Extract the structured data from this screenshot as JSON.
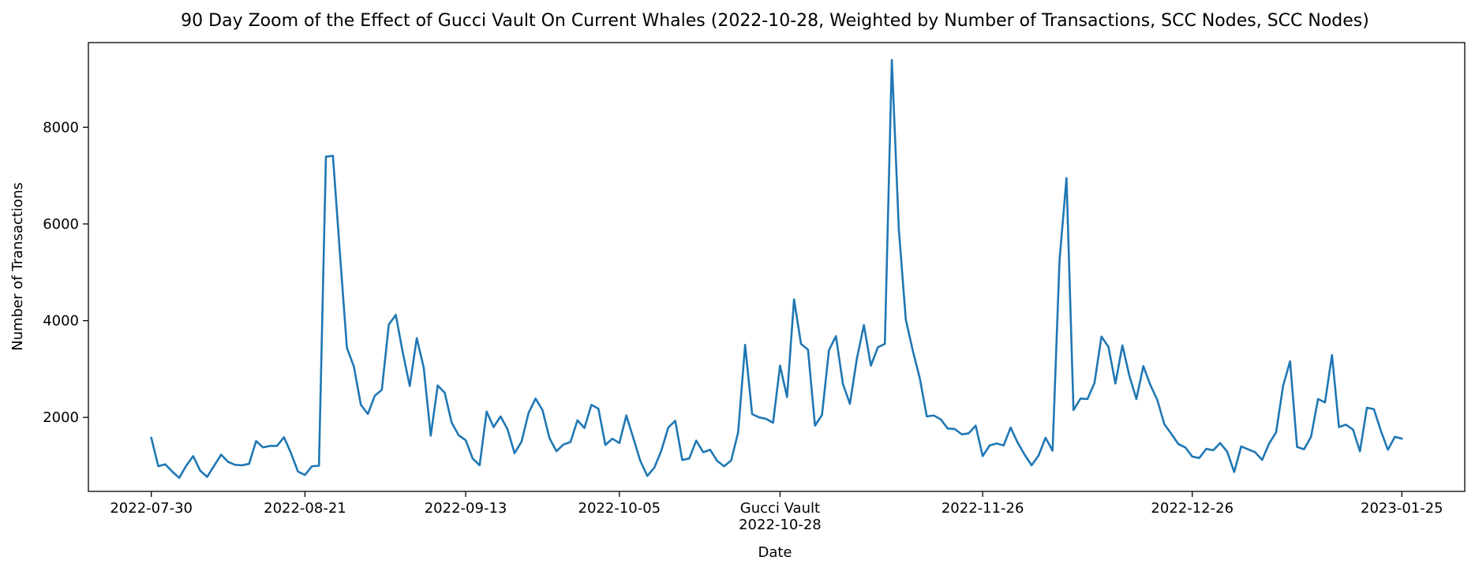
{
  "chart_data": {
    "type": "line",
    "title": "90 Day Zoom of the Effect of Gucci Vault On Current Whales (2022-10-28, Weighted by Number of Transactions, SCC Nodes, SCC Nodes)",
    "xlabel": "Date",
    "ylabel": "Number of Transactions",
    "x_axis": "date",
    "xlim": [
      "2022-07-21",
      "2023-02-03"
    ],
    "ylim": [
      470,
      9750
    ],
    "grid": false,
    "line_color": "#1f77b4",
    "yticks": [
      2000,
      4000,
      6000,
      8000
    ],
    "xticks": [
      {
        "date": "2022-07-30",
        "label": "2022-07-30"
      },
      {
        "date": "2022-08-21",
        "label": "2022-08-21"
      },
      {
        "date": "2022-09-13",
        "label": "2022-09-13"
      },
      {
        "date": "2022-10-05",
        "label": "2022-10-05"
      },
      {
        "date": "2022-10-28",
        "label": "2022-10-28",
        "event_label": "Gucci Vault"
      },
      {
        "date": "2022-11-26",
        "label": "2022-11-26"
      },
      {
        "date": "2022-12-26",
        "label": "2022-12-26"
      },
      {
        "date": "2023-01-25",
        "label": "2023-01-25"
      }
    ],
    "series": [
      {
        "start_date": "2022-07-30",
        "values": [
          1580,
          990,
          1030,
          880,
          750,
          1000,
          1200,
          900,
          770,
          1000,
          1230,
          1080,
          1020,
          1010,
          1040,
          1510,
          1380,
          1410,
          1410,
          1590,
          1260,
          880,
          810,
          990,
          1000,
          7390,
          7410,
          5400,
          3440,
          3050,
          2260,
          2070,
          2450,
          2570,
          3920,
          4120,
          3340,
          2650,
          3640,
          3030,
          1620,
          2660,
          2510,
          1890,
          1630,
          1530,
          1150,
          1010,
          2120,
          1800,
          2020,
          1750,
          1260,
          1500,
          2090,
          2390,
          2150,
          1570,
          1300,
          1440,
          1490,
          1940,
          1780,
          2260,
          2180,
          1430,
          1560,
          1470,
          2040,
          1570,
          1100,
          790,
          960,
          1310,
          1790,
          1930,
          1120,
          1150,
          1520,
          1280,
          1330,
          1100,
          990,
          1110,
          1690,
          3500,
          2070,
          2000,
          1970,
          1890,
          3070,
          2420,
          4440,
          3520,
          3400,
          1830,
          2050,
          3390,
          3680,
          2690,
          2280,
          3220,
          3910,
          3070,
          3450,
          3520,
          9390,
          5890,
          4020,
          3380,
          2810,
          2020,
          2040,
          1960,
          1770,
          1760,
          1650,
          1670,
          1830,
          1200,
          1420,
          1460,
          1420,
          1790,
          1480,
          1230,
          1010,
          1210,
          1580,
          1310,
          5250,
          6950,
          2150,
          2390,
          2380,
          2710,
          3670,
          3460,
          2700,
          3490,
          2860,
          2380,
          3060,
          2670,
          2360,
          1860,
          1660,
          1450,
          1380,
          1190,
          1160,
          1350,
          1320,
          1470,
          1290,
          870,
          1400,
          1340,
          1280,
          1120,
          1460,
          1690,
          2650,
          3160,
          1390,
          1340,
          1600,
          2380,
          2310,
          3290,
          1800,
          1850,
          1750,
          1300,
          2200,
          2170,
          1720,
          1330,
          1600,
          1560
        ]
      }
    ]
  }
}
